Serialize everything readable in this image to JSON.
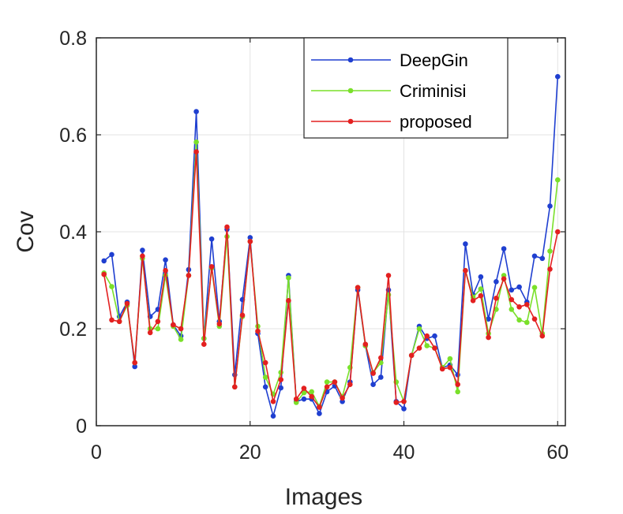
{
  "chart_data": {
    "type": "line",
    "xlabel": "Images",
    "ylabel": "Cov",
    "xlim": [
      0,
      61
    ],
    "ylim": [
      0,
      0.8
    ],
    "x_ticks": [
      0,
      20,
      40,
      60
    ],
    "x_tick_labels": [
      "0",
      "20",
      "40",
      "60"
    ],
    "y_ticks": [
      0,
      0.2,
      0.4,
      0.6,
      0.8
    ],
    "y_tick_labels": [
      "0",
      "0.2",
      "0.4",
      "0.6",
      "0.8"
    ],
    "grid": true,
    "legend_position": "top-right",
    "x": [
      1,
      2,
      3,
      4,
      5,
      6,
      7,
      8,
      9,
      10,
      11,
      12,
      13,
      14,
      15,
      16,
      17,
      18,
      19,
      20,
      21,
      22,
      23,
      24,
      25,
      26,
      27,
      28,
      29,
      30,
      31,
      32,
      33,
      34,
      35,
      36,
      37,
      38,
      39,
      40,
      41,
      42,
      43,
      44,
      45,
      46,
      47,
      48,
      49,
      50,
      51,
      52,
      53,
      54,
      55,
      56,
      57,
      58,
      59,
      60
    ],
    "series": [
      {
        "name": "DeepGin",
        "color": "#1f3fd0",
        "values": [
          0.34,
          0.353,
          0.225,
          0.255,
          0.122,
          0.362,
          0.225,
          0.24,
          0.342,
          0.208,
          0.185,
          0.322,
          0.648,
          0.18,
          0.385,
          0.215,
          0.405,
          0.105,
          0.26,
          0.388,
          0.19,
          0.08,
          0.02,
          0.078,
          0.31,
          0.05,
          0.055,
          0.055,
          0.025,
          0.07,
          0.082,
          0.05,
          0.09,
          0.28,
          0.165,
          0.085,
          0.1,
          0.28,
          0.05,
          0.035,
          0.145,
          0.205,
          0.18,
          0.185,
          0.12,
          0.125,
          0.105,
          0.375,
          0.27,
          0.307,
          0.22,
          0.297,
          0.365,
          0.28,
          0.286,
          0.255,
          0.35,
          0.345,
          0.453,
          0.72
        ]
      },
      {
        "name": "Criminisi",
        "color": "#7ae02a",
        "values": [
          0.315,
          0.287,
          0.215,
          0.248,
          0.13,
          0.345,
          0.2,
          0.2,
          0.31,
          0.205,
          0.178,
          0.31,
          0.585,
          0.18,
          0.325,
          0.205,
          0.39,
          0.08,
          0.225,
          0.38,
          0.205,
          0.1,
          0.065,
          0.11,
          0.305,
          0.048,
          0.068,
          0.07,
          0.04,
          0.09,
          0.09,
          0.06,
          0.12,
          0.285,
          0.165,
          0.11,
          0.13,
          0.27,
          0.09,
          0.05,
          0.145,
          0.2,
          0.165,
          0.16,
          0.12,
          0.138,
          0.07,
          0.32,
          0.265,
          0.282,
          0.19,
          0.24,
          0.31,
          0.24,
          0.218,
          0.213,
          0.285,
          0.19,
          0.36,
          0.507
        ]
      },
      {
        "name": "proposed",
        "color": "#e32020",
        "values": [
          0.312,
          0.218,
          0.215,
          0.252,
          0.13,
          0.35,
          0.192,
          0.215,
          0.32,
          0.208,
          0.2,
          0.31,
          0.565,
          0.168,
          0.328,
          0.21,
          0.41,
          0.08,
          0.228,
          0.38,
          0.195,
          0.13,
          0.05,
          0.095,
          0.258,
          0.055,
          0.077,
          0.06,
          0.038,
          0.08,
          0.09,
          0.057,
          0.085,
          0.285,
          0.168,
          0.108,
          0.14,
          0.31,
          0.048,
          0.05,
          0.145,
          0.16,
          0.185,
          0.16,
          0.117,
          0.12,
          0.085,
          0.32,
          0.258,
          0.268,
          0.182,
          0.263,
          0.303,
          0.26,
          0.245,
          0.25,
          0.22,
          0.185,
          0.323,
          0.4
        ]
      }
    ]
  }
}
